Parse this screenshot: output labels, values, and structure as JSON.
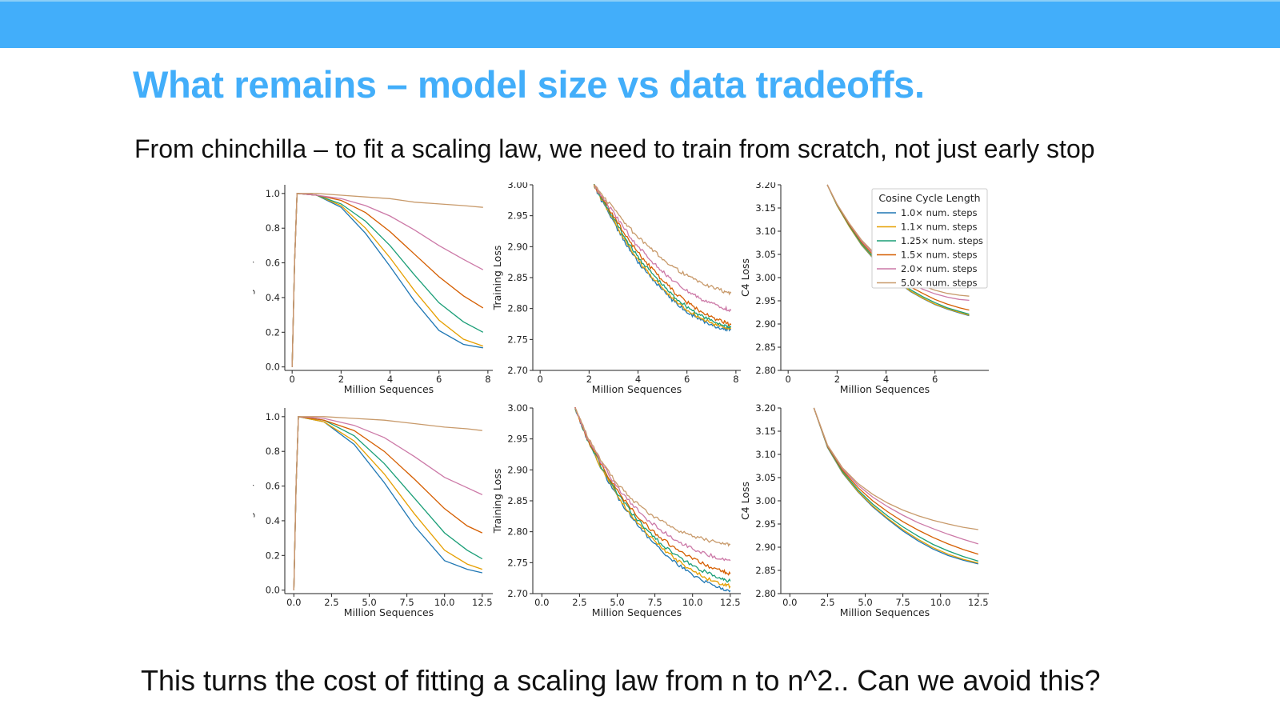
{
  "slide": {
    "title": "What remains – model size vs data tradeoffs.",
    "subtitle": "From chinchilla – to fit a scaling law, we need to train from scratch, not just early stop",
    "footer": "This turns the cost of fitting a scaling law from n to n^2.. Can we avoid this?"
  },
  "colors": {
    "top_bar": "#42aefa",
    "title": "#42aefa",
    "series": [
      "#1f77b4",
      "#e69f00",
      "#1a9e77",
      "#d55e00",
      "#cc79a7",
      "#c89a6b"
    ]
  },
  "legend": {
    "title": "Cosine Cycle Length",
    "location": "upper-right of top-right panel",
    "entries": [
      "1.0× num. steps",
      "1.1× num. steps",
      "1.25× num. steps",
      "1.5× num. steps",
      "2.0× num. steps",
      "5.0× num. steps"
    ]
  },
  "chart_data": [
    {
      "type": "line",
      "panel": "top-left",
      "xlabel": "Million Sequences",
      "ylabel": "Learning Rate/Max LR",
      "xlim": [
        -0.3,
        8.2
      ],
      "ylim": [
        -0.02,
        1.05
      ],
      "xticks": [
        0,
        2,
        4,
        6,
        8
      ],
      "xticklabels": [
        "0",
        "2",
        "4",
        "6",
        "8"
      ],
      "yticks": [
        0.0,
        0.2,
        0.4,
        0.6,
        0.8,
        1.0
      ],
      "yticklabels": [
        "0.0",
        "0.2",
        "0.4",
        "0.6",
        "0.8",
        "1.0"
      ],
      "x": [
        0,
        0.1,
        0.2,
        1.0,
        2.0,
        3.0,
        4.0,
        5.0,
        6.0,
        7.0,
        7.8
      ],
      "series": [
        {
          "name": "1.0× num. steps",
          "values": [
            0.0,
            0.6,
            1.0,
            0.99,
            0.92,
            0.77,
            0.58,
            0.38,
            0.21,
            0.13,
            0.11
          ]
        },
        {
          "name": "1.1× num. steps",
          "values": [
            0.0,
            0.6,
            1.0,
            0.99,
            0.93,
            0.8,
            0.63,
            0.44,
            0.27,
            0.16,
            0.12
          ]
        },
        {
          "name": "1.25× num. steps",
          "values": [
            0.0,
            0.6,
            1.0,
            0.99,
            0.94,
            0.84,
            0.7,
            0.53,
            0.37,
            0.26,
            0.2
          ]
        },
        {
          "name": "1.5× num. steps",
          "values": [
            0.0,
            0.6,
            1.0,
            0.99,
            0.96,
            0.89,
            0.78,
            0.65,
            0.52,
            0.41,
            0.34
          ]
        },
        {
          "name": "2.0× num. steps",
          "values": [
            0.0,
            0.6,
            1.0,
            0.99,
            0.97,
            0.93,
            0.87,
            0.79,
            0.7,
            0.62,
            0.56
          ]
        },
        {
          "name": "5.0× num. steps",
          "values": [
            0.0,
            0.6,
            1.0,
            1.0,
            0.99,
            0.98,
            0.97,
            0.95,
            0.94,
            0.93,
            0.92
          ]
        }
      ]
    },
    {
      "type": "line",
      "panel": "top-middle",
      "xlabel": "Million Sequences",
      "ylabel": "Training Loss",
      "xlim": [
        -0.3,
        8.2
      ],
      "ylim": [
        2.7,
        3.0
      ],
      "xticks": [
        0,
        2,
        4,
        6,
        8
      ],
      "xticklabels": [
        "0",
        "2",
        "4",
        "6",
        "8"
      ],
      "yticks": [
        2.7,
        2.75,
        2.8,
        2.85,
        2.9,
        2.95,
        3.0
      ],
      "yticklabels": [
        "2.70",
        "2.75",
        "2.80",
        "2.85",
        "2.90",
        "2.95",
        "3.00"
      ],
      "x": [
        2.2,
        2.5,
        3,
        3.5,
        4,
        4.5,
        5,
        5.5,
        6,
        6.5,
        7,
        7.5,
        7.8
      ],
      "series": [
        {
          "name": "1.0× num. steps",
          "values": [
            3.0,
            2.975,
            2.94,
            2.905,
            2.875,
            2.852,
            2.83,
            2.81,
            2.795,
            2.783,
            2.773,
            2.767,
            2.766
          ]
        },
        {
          "name": "1.1× num. steps",
          "values": [
            3.0,
            2.977,
            2.943,
            2.908,
            2.878,
            2.855,
            2.833,
            2.813,
            2.798,
            2.786,
            2.776,
            2.77,
            2.768
          ]
        },
        {
          "name": "1.25× num. steps",
          "values": [
            3.0,
            2.978,
            2.946,
            2.912,
            2.883,
            2.86,
            2.838,
            2.818,
            2.803,
            2.79,
            2.78,
            2.773,
            2.77
          ]
        },
        {
          "name": "1.5× num. steps",
          "values": [
            3.0,
            2.98,
            2.95,
            2.918,
            2.89,
            2.867,
            2.846,
            2.826,
            2.81,
            2.797,
            2.786,
            2.778,
            2.774
          ]
        },
        {
          "name": "2.0× num. steps",
          "values": [
            3.0,
            2.982,
            2.955,
            2.926,
            2.9,
            2.879,
            2.86,
            2.842,
            2.828,
            2.817,
            2.808,
            2.801,
            2.797
          ]
        },
        {
          "name": "5.0× num. steps",
          "values": [
            3.0,
            2.985,
            2.962,
            2.937,
            2.915,
            2.897,
            2.881,
            2.866,
            2.853,
            2.843,
            2.835,
            2.828,
            2.825
          ]
        }
      ]
    },
    {
      "type": "line",
      "panel": "top-right",
      "xlabel": "Million Sequences",
      "ylabel": "C4 Loss",
      "xlim": [
        -0.3,
        8.2
      ],
      "ylim": [
        2.8,
        3.2
      ],
      "xticks": [
        0,
        2,
        4,
        6
      ],
      "xticklabels": [
        "0",
        "2",
        "4",
        "6"
      ],
      "yticks": [
        2.8,
        2.85,
        2.9,
        2.95,
        3.0,
        3.05,
        3.1,
        3.15,
        3.2
      ],
      "yticklabels": [
        "2.80",
        "2.85",
        "2.90",
        "2.95",
        "3.00",
        "3.05",
        "3.10",
        "3.15",
        "3.20"
      ],
      "x": [
        1.6,
        2,
        2.5,
        3,
        3.5,
        4,
        4.5,
        5,
        5.5,
        6,
        6.5,
        7,
        7.4
      ],
      "series": [
        {
          "name": "1.0× num. steps",
          "values": [
            3.2,
            3.155,
            3.11,
            3.07,
            3.04,
            3.013,
            2.99,
            2.97,
            2.955,
            2.942,
            2.932,
            2.924,
            2.918
          ]
        },
        {
          "name": "1.1× num. steps",
          "values": [
            3.2,
            3.155,
            3.11,
            3.071,
            3.041,
            3.014,
            2.991,
            2.971,
            2.956,
            2.943,
            2.933,
            2.925,
            2.919
          ]
        },
        {
          "name": "1.25× num. steps",
          "values": [
            3.2,
            3.156,
            3.112,
            3.073,
            3.043,
            3.016,
            2.994,
            2.974,
            2.959,
            2.946,
            2.935,
            2.927,
            2.921
          ]
        },
        {
          "name": "1.5× num. steps",
          "values": [
            3.2,
            3.157,
            3.114,
            3.076,
            3.047,
            3.021,
            2.999,
            2.98,
            2.966,
            2.953,
            2.943,
            2.935,
            2.93
          ]
        },
        {
          "name": "2.0× num. steps",
          "values": [
            3.2,
            3.158,
            3.116,
            3.079,
            3.051,
            3.026,
            3.005,
            2.988,
            2.975,
            2.965,
            2.958,
            2.953,
            2.951
          ]
        },
        {
          "name": "5.0× num. steps",
          "values": [
            3.2,
            3.158,
            3.117,
            3.081,
            3.054,
            3.03,
            3.01,
            2.994,
            2.982,
            2.973,
            2.966,
            2.962,
            2.96
          ]
        }
      ]
    },
    {
      "type": "line",
      "panel": "bottom-left",
      "xlabel": "Million Sequences",
      "ylabel": "Learning Rate/Max LR",
      "xlim": [
        -0.6,
        13.2
      ],
      "ylim": [
        -0.02,
        1.05
      ],
      "xticks": [
        0,
        2.5,
        5,
        7.5,
        10,
        12.5
      ],
      "xticklabels": [
        "0.0",
        "2.5",
        "5.0",
        "7.5",
        "10.0",
        "12.5"
      ],
      "yticks": [
        0.0,
        0.2,
        0.4,
        0.6,
        0.8,
        1.0
      ],
      "yticklabels": [
        "0.0",
        "0.2",
        "0.4",
        "0.6",
        "0.8",
        "1.0"
      ],
      "x": [
        0,
        0.15,
        0.3,
        2,
        4,
        6,
        8,
        10,
        11.5,
        12.5
      ],
      "series": [
        {
          "name": "1.0× num. steps",
          "values": [
            0.0,
            0.6,
            1.0,
            0.97,
            0.84,
            0.62,
            0.37,
            0.17,
            0.12,
            0.1
          ]
        },
        {
          "name": "1.1× num. steps",
          "values": [
            0.0,
            0.6,
            1.0,
            0.97,
            0.86,
            0.67,
            0.44,
            0.23,
            0.15,
            0.12
          ]
        },
        {
          "name": "1.25× num. steps",
          "values": [
            0.0,
            0.6,
            1.0,
            0.98,
            0.89,
            0.73,
            0.53,
            0.33,
            0.23,
            0.18
          ]
        },
        {
          "name": "1.5× num. steps",
          "values": [
            0.0,
            0.6,
            1.0,
            0.98,
            0.92,
            0.8,
            0.64,
            0.47,
            0.37,
            0.33
          ]
        },
        {
          "name": "2.0× num. steps",
          "values": [
            0.0,
            0.6,
            1.0,
            0.99,
            0.95,
            0.88,
            0.77,
            0.65,
            0.59,
            0.55
          ]
        },
        {
          "name": "5.0× num. steps",
          "values": [
            0.0,
            0.6,
            1.0,
            1.0,
            0.99,
            0.98,
            0.96,
            0.94,
            0.93,
            0.92
          ]
        }
      ]
    },
    {
      "type": "line",
      "panel": "bottom-middle",
      "xlabel": "Million Sequences",
      "ylabel": "Training Loss",
      "xlim": [
        -0.6,
        13.2
      ],
      "ylim": [
        2.7,
        3.0
      ],
      "xticks": [
        0,
        2.5,
        5,
        7.5,
        10,
        12.5
      ],
      "xticklabels": [
        "0.0",
        "2.5",
        "5.0",
        "7.5",
        "10.0",
        "12.5"
      ],
      "yticks": [
        2.7,
        2.75,
        2.8,
        2.85,
        2.9,
        2.95,
        3.0
      ],
      "yticklabels": [
        "2.70",
        "2.75",
        "2.80",
        "2.85",
        "2.90",
        "2.95",
        "3.00"
      ],
      "x": [
        2.2,
        3,
        4,
        5,
        6,
        7,
        8,
        9,
        10,
        11,
        12,
        12.5
      ],
      "series": [
        {
          "name": "1.0× num. steps",
          "values": [
            3.0,
            2.95,
            2.9,
            2.857,
            2.822,
            2.793,
            2.768,
            2.747,
            2.73,
            2.717,
            2.708,
            2.705
          ]
        },
        {
          "name": "1.1× num. steps",
          "values": [
            3.0,
            2.95,
            2.901,
            2.859,
            2.825,
            2.797,
            2.773,
            2.753,
            2.737,
            2.724,
            2.715,
            2.712
          ]
        },
        {
          "name": "1.25× num. steps",
          "values": [
            3.0,
            2.951,
            2.903,
            2.862,
            2.829,
            2.802,
            2.779,
            2.76,
            2.745,
            2.733,
            2.724,
            2.72
          ]
        },
        {
          "name": "1.5× num. steps",
          "values": [
            3.0,
            2.952,
            2.906,
            2.866,
            2.835,
            2.809,
            2.788,
            2.77,
            2.756,
            2.745,
            2.736,
            2.732
          ]
        },
        {
          "name": "2.0× num. steps",
          "values": [
            3.0,
            2.953,
            2.909,
            2.872,
            2.843,
            2.82,
            2.801,
            2.785,
            2.773,
            2.763,
            2.756,
            2.753
          ]
        },
        {
          "name": "5.0× num. steps",
          "values": [
            3.0,
            2.955,
            2.913,
            2.878,
            2.852,
            2.832,
            2.816,
            2.803,
            2.793,
            2.786,
            2.781,
            2.779
          ]
        }
      ]
    },
    {
      "type": "line",
      "panel": "bottom-right",
      "xlabel": "Million Sequences",
      "ylabel": "C4 Loss",
      "xlim": [
        -0.6,
        13.2
      ],
      "ylim": [
        2.8,
        3.2
      ],
      "xticks": [
        0,
        2.5,
        5,
        7.5,
        10,
        12.5
      ],
      "xticklabels": [
        "0.0",
        "2.5",
        "5.0",
        "7.5",
        "10.0",
        "12.5"
      ],
      "yticks": [
        2.8,
        2.85,
        2.9,
        2.95,
        3.0,
        3.05,
        3.1,
        3.15,
        3.2
      ],
      "yticklabels": [
        "2.80",
        "2.85",
        "2.90",
        "2.95",
        "3.00",
        "3.05",
        "3.10",
        "3.15",
        "3.20"
      ],
      "x": [
        1.6,
        2.5,
        3.5,
        4.5,
        5.5,
        6.5,
        7.5,
        8.5,
        9.5,
        10.5,
        11.5,
        12.5
      ],
      "series": [
        {
          "name": "1.0× num. steps",
          "values": [
            3.2,
            3.115,
            3.06,
            3.02,
            2.987,
            2.96,
            2.935,
            2.914,
            2.896,
            2.882,
            2.872,
            2.864
          ]
        },
        {
          "name": "1.1× num. steps",
          "values": [
            3.2,
            3.116,
            3.061,
            3.021,
            2.989,
            2.962,
            2.938,
            2.917,
            2.899,
            2.885,
            2.874,
            2.866
          ]
        },
        {
          "name": "1.25× num. steps",
          "values": [
            3.2,
            3.117,
            3.063,
            3.024,
            2.993,
            2.967,
            2.944,
            2.924,
            2.906,
            2.892,
            2.88,
            2.87
          ]
        },
        {
          "name": "1.5× num. steps",
          "values": [
            3.2,
            3.118,
            3.066,
            3.029,
            3.0,
            2.976,
            2.955,
            2.937,
            2.921,
            2.907,
            2.895,
            2.885
          ]
        },
        {
          "name": "2.0× num. steps",
          "values": [
            3.2,
            3.119,
            3.069,
            3.034,
            3.008,
            2.987,
            2.969,
            2.953,
            2.94,
            2.928,
            2.917,
            2.907
          ]
        },
        {
          "name": "5.0× num. steps",
          "values": [
            3.2,
            3.12,
            3.071,
            3.038,
            3.014,
            2.995,
            2.98,
            2.968,
            2.958,
            2.95,
            2.943,
            2.938
          ]
        }
      ]
    }
  ]
}
